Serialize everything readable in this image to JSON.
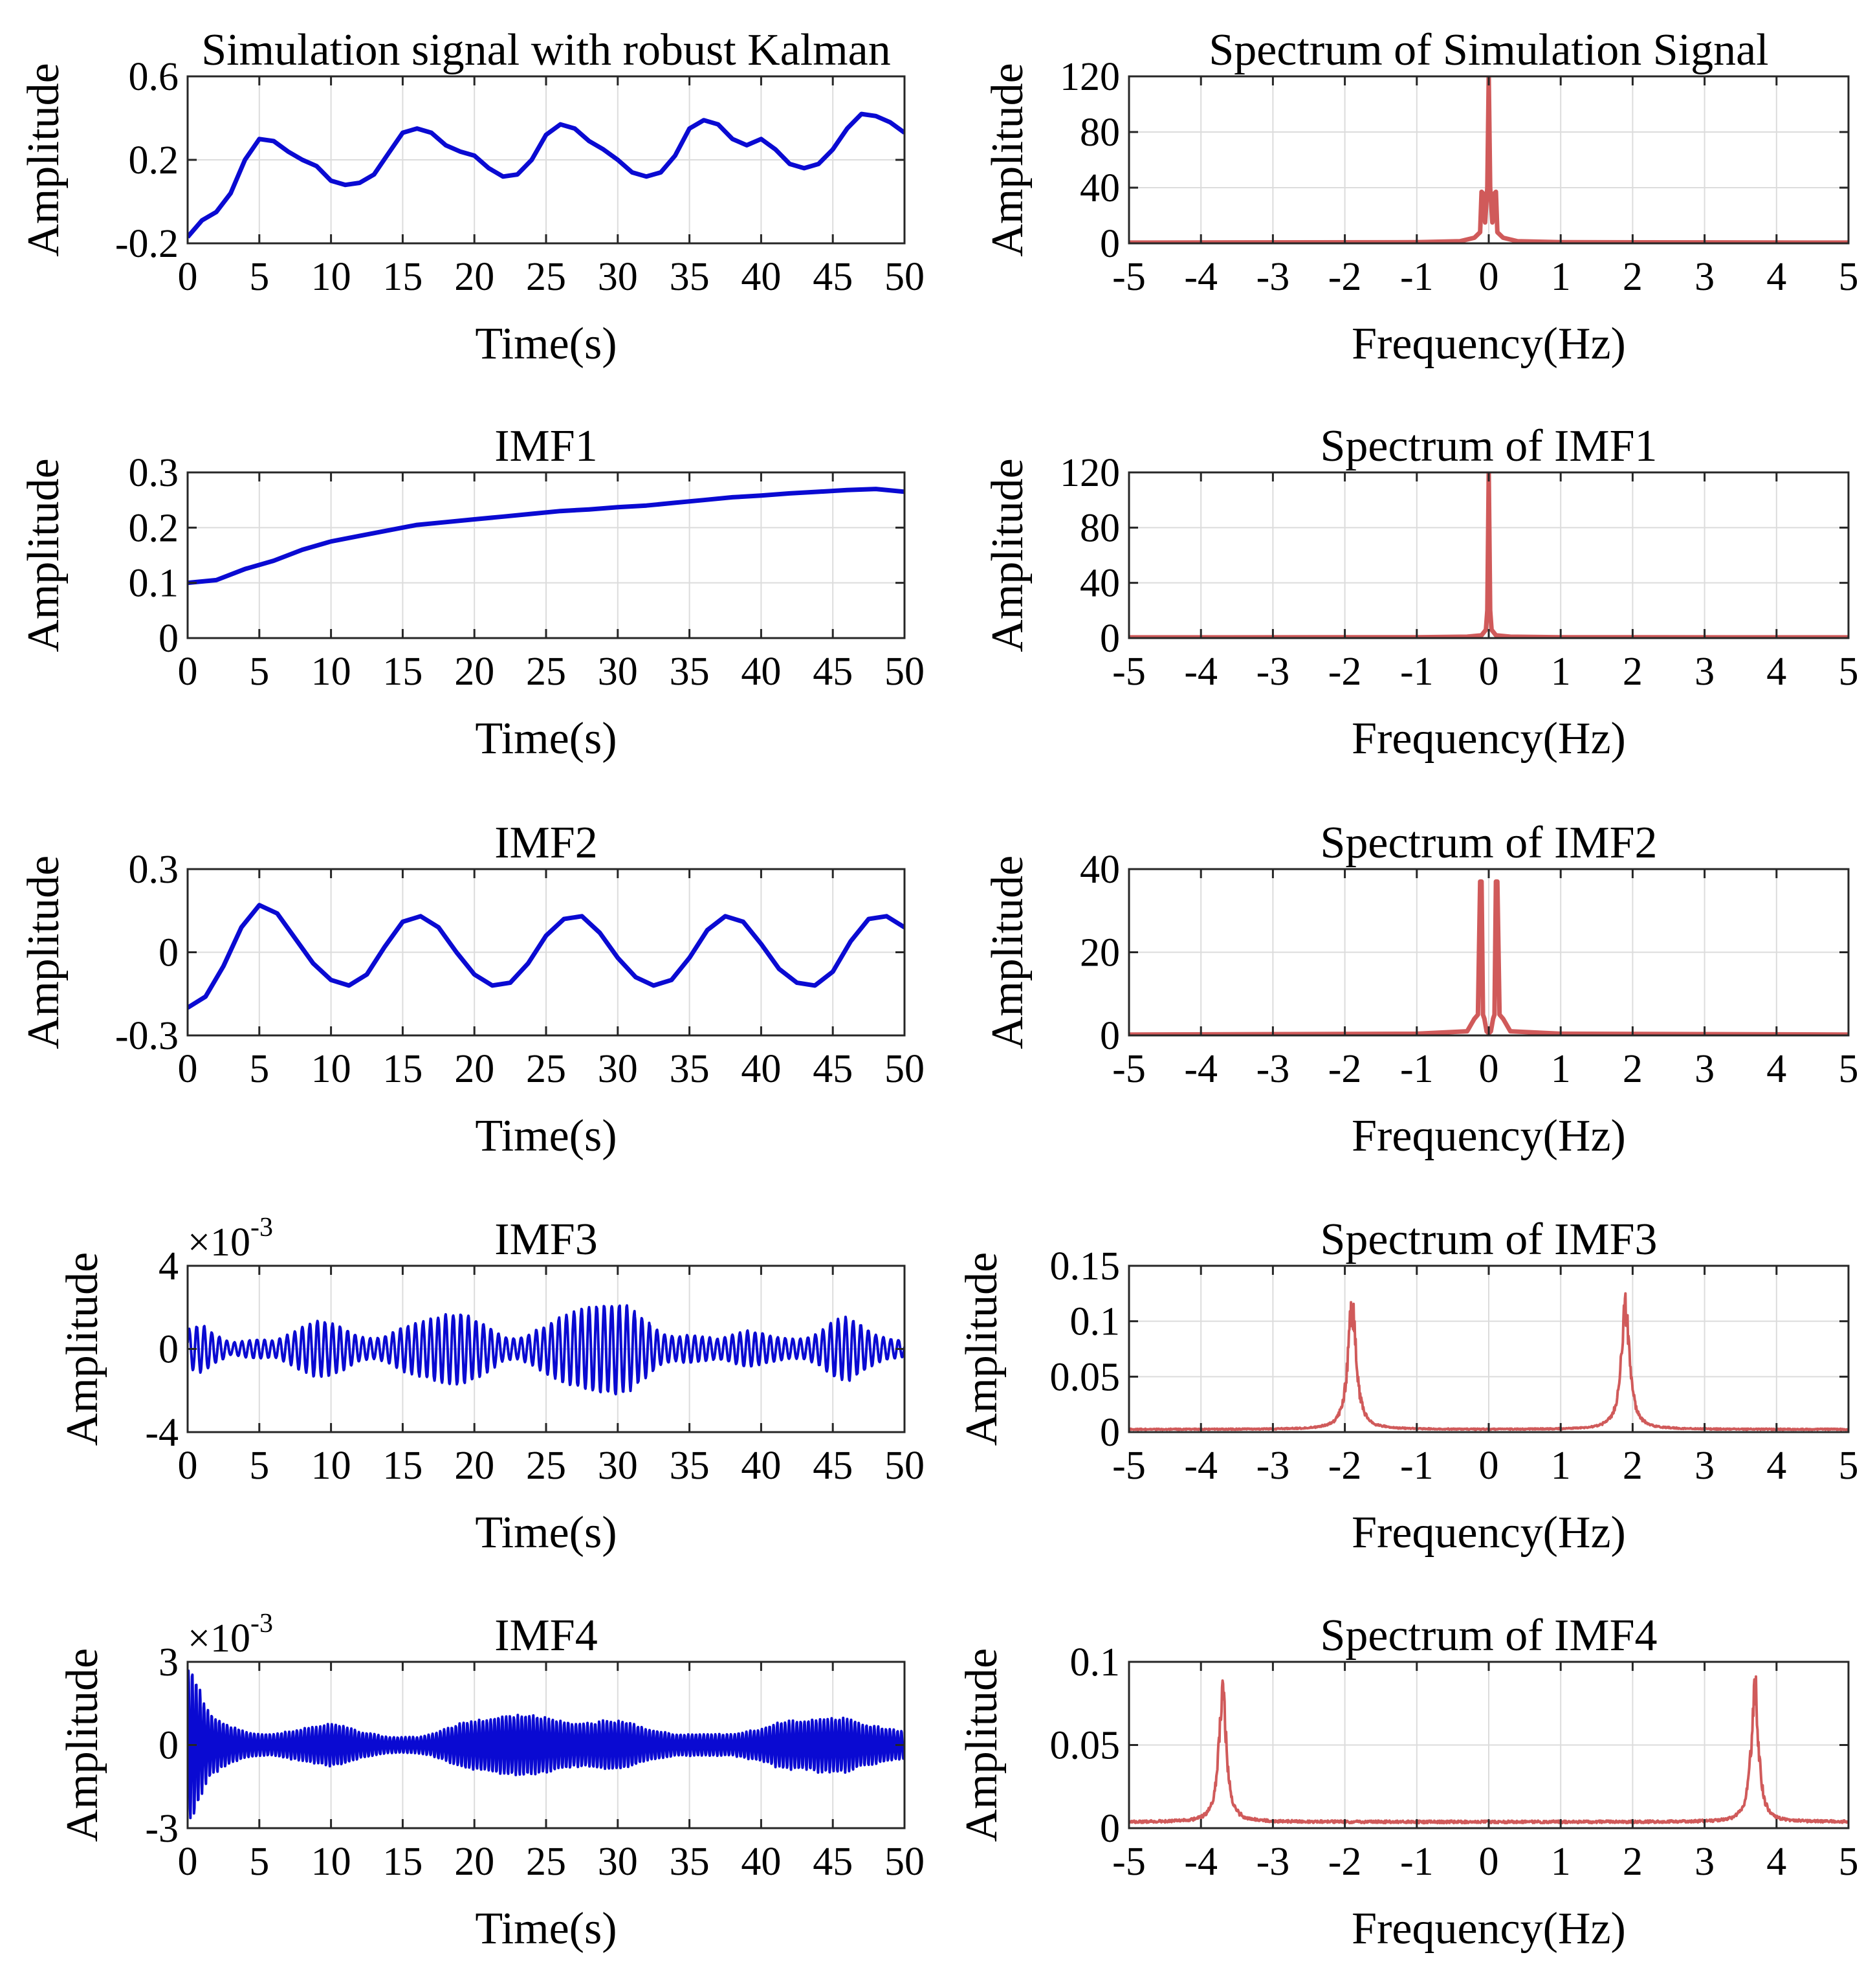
{
  "chart_data": [
    {
      "type": "line",
      "id": "sim",
      "title": "Simulation signal with robust Kalman",
      "xlabel": "Time(s)",
      "ylabel": "Amplitude",
      "xlim": [
        0,
        50
      ],
      "ylim": [
        -0.2,
        0.6
      ],
      "xticks": [
        "0",
        "5",
        "10",
        "15",
        "20",
        "25",
        "30",
        "35",
        "40",
        "45",
        "50"
      ],
      "yticks": [
        "-0.2",
        "0.2",
        "0.6"
      ],
      "ytick_values": [
        -0.2,
        0.2,
        0.6
      ],
      "color": "#0a0ad2",
      "grid": true,
      "series": [
        {
          "x": [
            0,
            1,
            2,
            3,
            4,
            5,
            6,
            7,
            8,
            9,
            10,
            11,
            12,
            13,
            14,
            15,
            16,
            17,
            18,
            19,
            20,
            21,
            22,
            23,
            24,
            25,
            26,
            27,
            28,
            29,
            30,
            31,
            32,
            33,
            34,
            35,
            36,
            37,
            38,
            39,
            40,
            41,
            42,
            43,
            44,
            45,
            46,
            47,
            48,
            49,
            50
          ],
          "values": [
            -0.17,
            -0.09,
            -0.05,
            0.04,
            0.2,
            0.3,
            0.29,
            0.24,
            0.2,
            0.17,
            0.1,
            0.08,
            0.09,
            0.13,
            0.23,
            0.33,
            0.35,
            0.33,
            0.27,
            0.24,
            0.22,
            0.16,
            0.12,
            0.13,
            0.2,
            0.32,
            0.37,
            0.35,
            0.29,
            0.25,
            0.2,
            0.14,
            0.12,
            0.14,
            0.22,
            0.35,
            0.39,
            0.37,
            0.3,
            0.27,
            0.3,
            0.25,
            0.18,
            0.16,
            0.18,
            0.25,
            0.35,
            0.42,
            0.41,
            0.38,
            0.33
          ]
        }
      ]
    },
    {
      "type": "line",
      "id": "sim-spec",
      "title": "Spectrum of Simulation Signal",
      "xlabel": "Frequency(Hz)",
      "ylabel": "Amplitude",
      "xlim": [
        -5,
        5
      ],
      "ylim": [
        0,
        120
      ],
      "xticks": [
        "-5",
        "-4",
        "-3",
        "-2",
        "-1",
        "0",
        "1",
        "2",
        "3",
        "4",
        "5"
      ],
      "yticks": [
        "0",
        "40",
        "80",
        "120"
      ],
      "ytick_values": [
        0,
        40,
        80,
        120
      ],
      "color": "#d05a5a",
      "grid": true,
      "series": [
        {
          "x": [
            -5,
            -1,
            -0.4,
            -0.2,
            -0.12,
            -0.1,
            -0.08,
            -0.05,
            -0.02,
            0,
            0.02,
            0.05,
            0.08,
            0.1,
            0.12,
            0.2,
            0.4,
            1,
            5
          ],
          "values": [
            0.5,
            0.8,
            1.5,
            4,
            8,
            37,
            36,
            15,
            40,
            120,
            40,
            15,
            36,
            37,
            8,
            4,
            1.5,
            0.8,
            0.5
          ]
        }
      ]
    },
    {
      "type": "line",
      "id": "imf1",
      "title": "IMF1",
      "xlabel": "Time(s)",
      "ylabel": "Amplitude",
      "xlim": [
        0,
        50
      ],
      "ylim": [
        0,
        0.3
      ],
      "xticks": [
        "0",
        "5",
        "10",
        "15",
        "20",
        "25",
        "30",
        "35",
        "40",
        "45",
        "50"
      ],
      "yticks": [
        "0",
        "0.1",
        "0.2",
        "0.3"
      ],
      "ytick_values": [
        0,
        0.1,
        0.2,
        0.3
      ],
      "color": "#0a0ad2",
      "grid": true,
      "series": [
        {
          "x": [
            0,
            2,
            4,
            6,
            8,
            10,
            12,
            14,
            16,
            18,
            20,
            22,
            24,
            26,
            28,
            30,
            32,
            34,
            36,
            38,
            40,
            42,
            44,
            46,
            48,
            50
          ],
          "values": [
            0.1,
            0.105,
            0.125,
            0.14,
            0.16,
            0.175,
            0.185,
            0.195,
            0.205,
            0.21,
            0.215,
            0.22,
            0.225,
            0.23,
            0.233,
            0.237,
            0.24,
            0.245,
            0.25,
            0.255,
            0.258,
            0.262,
            0.265,
            0.268,
            0.27,
            0.265
          ]
        }
      ]
    },
    {
      "type": "line",
      "id": "imf1-spec",
      "title": "Spectrum of IMF1",
      "xlabel": "Frequency(Hz)",
      "ylabel": "Amplitude",
      "xlim": [
        -5,
        5
      ],
      "ylim": [
        0,
        120
      ],
      "xticks": [
        "-5",
        "-4",
        "-3",
        "-2",
        "-1",
        "0",
        "1",
        "2",
        "3",
        "4",
        "5"
      ],
      "yticks": [
        "0",
        "40",
        "80",
        "120"
      ],
      "ytick_values": [
        0,
        40,
        80,
        120
      ],
      "color": "#d05a5a",
      "grid": true,
      "series": [
        {
          "x": [
            -5,
            -1,
            -0.3,
            -0.1,
            -0.04,
            -0.02,
            0,
            0.02,
            0.04,
            0.1,
            0.3,
            1,
            5
          ],
          "values": [
            0.5,
            0.6,
            1,
            2,
            6,
            20,
            120,
            20,
            6,
            2,
            1,
            0.6,
            0.5
          ]
        }
      ]
    },
    {
      "type": "line",
      "id": "imf2",
      "title": "IMF2",
      "xlabel": "Time(s)",
      "ylabel": "Amplitude",
      "xlim": [
        0,
        50
      ],
      "ylim": [
        -0.3,
        0.3
      ],
      "xticks": [
        "0",
        "5",
        "10",
        "15",
        "20",
        "25",
        "30",
        "35",
        "40",
        "45",
        "50"
      ],
      "yticks": [
        "-0.3",
        "0",
        "0.3"
      ],
      "ytick_values": [
        -0.3,
        0,
        0.3
      ],
      "color": "#0a0ad2",
      "grid": true,
      "series": [
        {
          "x": [
            0,
            1.25,
            2.5,
            3.75,
            5,
            6.25,
            7.5,
            8.75,
            10,
            11.25,
            12.5,
            13.75,
            15,
            16.25,
            17.5,
            18.75,
            20,
            21.25,
            22.5,
            23.75,
            25,
            26.25,
            27.5,
            28.75,
            30,
            31.25,
            32.5,
            33.75,
            35,
            36.25,
            37.5,
            38.75,
            40,
            41.25,
            42.5,
            43.75,
            45,
            46.25,
            47.5,
            48.75,
            50
          ],
          "values": [
            -0.2,
            -0.16,
            -0.05,
            0.09,
            0.17,
            0.14,
            0.05,
            -0.04,
            -0.1,
            -0.12,
            -0.08,
            0.02,
            0.11,
            0.13,
            0.09,
            0.0,
            -0.08,
            -0.12,
            -0.11,
            -0.04,
            0.06,
            0.12,
            0.13,
            0.07,
            -0.02,
            -0.09,
            -0.12,
            -0.1,
            -0.02,
            0.08,
            0.13,
            0.11,
            0.03,
            -0.06,
            -0.11,
            -0.12,
            -0.07,
            0.04,
            0.12,
            0.13,
            0.09
          ]
        }
      ]
    },
    {
      "type": "line",
      "id": "imf2-spec",
      "title": "Spectrum of IMF2",
      "xlabel": "Frequency(Hz)",
      "ylabel": "Amplitude",
      "xlim": [
        -5,
        5
      ],
      "ylim": [
        0,
        40
      ],
      "xticks": [
        "-5",
        "-4",
        "-3",
        "-2",
        "-1",
        "0",
        "1",
        "2",
        "3",
        "4",
        "5"
      ],
      "yticks": [
        "0",
        "20",
        "40"
      ],
      "ytick_values": [
        0,
        20,
        40
      ],
      "color": "#d05a5a",
      "grid": true,
      "series": [
        {
          "x": [
            -5,
            -1,
            -0.3,
            -0.2,
            -0.15,
            -0.12,
            -0.1,
            -0.08,
            -0.06,
            -0.03,
            0,
            0.03,
            0.06,
            0.08,
            0.1,
            0.12,
            0.15,
            0.2,
            0.3,
            1,
            5
          ],
          "values": [
            0.2,
            0.4,
            1,
            4,
            5,
            37,
            37,
            5,
            4,
            1,
            0.5,
            1,
            4,
            5,
            37,
            37,
            5,
            4,
            1,
            0.4,
            0.2
          ]
        }
      ]
    },
    {
      "type": "line",
      "id": "imf3",
      "title": "IMF3",
      "xlabel": "Time(s)",
      "ylabel": "Amplitude",
      "xlim": [
        0,
        50
      ],
      "ylim": [
        -4,
        4
      ],
      "y_multiplier": {
        "base": "×10",
        "exponent": "-3"
      },
      "xticks": [
        "0",
        "5",
        "10",
        "15",
        "20",
        "25",
        "30",
        "35",
        "40",
        "45",
        "50"
      ],
      "yticks": [
        "-4",
        "0",
        "4"
      ],
      "ytick_values": [
        -4,
        0,
        4
      ],
      "color": "#0a0ad2",
      "grid": true,
      "series": [
        {
          "carrier_hz": 1.9,
          "envelope_x": [
            0,
            1,
            2,
            3,
            4,
            5,
            6,
            7,
            8,
            9,
            10,
            11,
            12,
            13,
            14,
            15,
            16,
            17,
            18,
            19,
            20,
            21,
            22,
            23,
            24,
            25,
            26,
            27,
            28,
            29,
            30,
            31,
            32,
            33,
            34,
            35,
            36,
            37,
            38,
            39,
            40,
            41,
            42,
            43,
            44,
            45,
            46,
            47,
            48,
            49,
            50
          ],
          "envelope": [
            1.0,
            1.2,
            0.7,
            0.3,
            0.4,
            0.5,
            0.4,
            0.7,
            1.1,
            1.4,
            1.3,
            1.0,
            0.6,
            0.5,
            0.7,
            1.1,
            1.3,
            1.5,
            1.7,
            1.8,
            1.5,
            1.1,
            0.6,
            0.5,
            0.8,
            1.2,
            1.6,
            1.9,
            2.1,
            2.2,
            2.3,
            2.0,
            1.4,
            0.8,
            0.6,
            0.7,
            0.6,
            0.5,
            0.7,
            0.9,
            0.8,
            0.6,
            0.5,
            0.5,
            0.8,
            1.4,
            1.6,
            1.2,
            0.7,
            0.5,
            0.4
          ]
        }
      ]
    },
    {
      "type": "line",
      "id": "imf3-spec",
      "title": "Spectrum of IMF3",
      "xlabel": "Frequency(Hz)",
      "ylabel": "Amplitude",
      "xlim": [
        -5,
        5
      ],
      "ylim": [
        0,
        0.15
      ],
      "xticks": [
        "-5",
        "-4",
        "-3",
        "-2",
        "-1",
        "0",
        "1",
        "2",
        "3",
        "4",
        "5"
      ],
      "yticks": [
        "0",
        "0.05",
        "0.1",
        "0.15"
      ],
      "ytick_values": [
        0,
        0.05,
        0.1,
        0.15
      ],
      "color": "#d05a5a",
      "grid": true,
      "series": [
        {
          "peak_hz": 1.9,
          "peak_value": 0.125,
          "peak_width": 0.14,
          "floor": 0.002,
          "max_abs_hz": 5
        }
      ]
    },
    {
      "type": "line",
      "id": "imf4",
      "title": "IMF4",
      "xlabel": "Time(s)",
      "ylabel": "Amplitude",
      "xlim": [
        0,
        50
      ],
      "ylim": [
        -3,
        3
      ],
      "y_multiplier": {
        "base": "×10",
        "exponent": "-3"
      },
      "xticks": [
        "0",
        "5",
        "10",
        "15",
        "20",
        "25",
        "30",
        "35",
        "40",
        "45",
        "50"
      ],
      "yticks": [
        "-3",
        "0",
        "3"
      ],
      "ytick_values": [
        -3,
        0,
        3
      ],
      "color": "#0a0ad2",
      "grid": true,
      "series": [
        {
          "carrier_hz": 3.7,
          "envelope_x": [
            0,
            0.5,
            1,
            1.5,
            2,
            3,
            4,
            5,
            6,
            7,
            8,
            9,
            10,
            11,
            12,
            13,
            14,
            15,
            16,
            17,
            18,
            19,
            20,
            21,
            22,
            23,
            24,
            25,
            26,
            27,
            28,
            29,
            30,
            31,
            32,
            33,
            34,
            35,
            36,
            37,
            38,
            39,
            40,
            41,
            42,
            43,
            44,
            45,
            46,
            47,
            48,
            49,
            50
          ],
          "envelope": [
            3.0,
            2.6,
            1.8,
            1.2,
            1.0,
            0.7,
            0.5,
            0.4,
            0.4,
            0.5,
            0.6,
            0.7,
            0.8,
            0.7,
            0.5,
            0.4,
            0.3,
            0.3,
            0.3,
            0.4,
            0.6,
            0.8,
            0.9,
            1.0,
            1.1,
            1.1,
            1.1,
            1.0,
            0.9,
            0.8,
            0.8,
            0.9,
            0.9,
            0.8,
            0.6,
            0.5,
            0.4,
            0.4,
            0.4,
            0.4,
            0.4,
            0.5,
            0.6,
            0.8,
            0.9,
            0.9,
            1.0,
            1.0,
            1.0,
            0.8,
            0.7,
            0.6,
            0.5
          ]
        }
      ]
    },
    {
      "type": "line",
      "id": "imf4-spec",
      "title": "Spectrum of IMF4",
      "xlabel": "Frequency(Hz)",
      "ylabel": "Amplitude",
      "xlim": [
        -5,
        5
      ],
      "ylim": [
        0,
        0.1
      ],
      "xticks": [
        "-5",
        "-4",
        "-3",
        "-2",
        "-1",
        "0",
        "1",
        "2",
        "3",
        "4",
        "5"
      ],
      "yticks": [
        "0",
        "0.05",
        "0.1"
      ],
      "ytick_values": [
        0,
        0.05,
        0.1
      ],
      "color": "#d05a5a",
      "grid": true,
      "series": [
        {
          "peak_hz": 3.7,
          "peak_value": 0.092,
          "peak_width": 0.12,
          "floor": 0.003,
          "max_abs_hz": 5
        }
      ]
    }
  ]
}
